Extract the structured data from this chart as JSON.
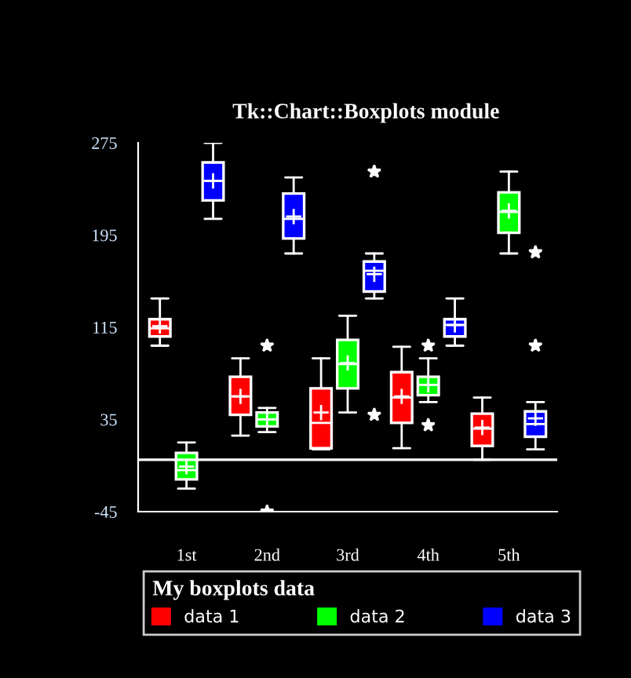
{
  "chart_data": {
    "type": "box",
    "title": "Tk::Chart::Boxplots module",
    "legend_title": "My boxplots data",
    "legend": "bottom",
    "categories": [
      "1st",
      "2nd",
      "3rd",
      "4th",
      "5th"
    ],
    "ylim": [
      -45,
      275
    ],
    "yticks": [
      -45,
      35,
      115,
      195,
      275
    ],
    "grid": false,
    "ref_lines": [
      {
        "axis": "y",
        "value": 0,
        "color": "#ffffff"
      }
    ],
    "series": [
      {
        "name": "data 1",
        "color": "#ff0000",
        "boxes": [
          {
            "low": 99,
            "q1": 107,
            "median": 114,
            "q3": 122,
            "high": 140,
            "mean": 116
          },
          {
            "low": 21,
            "q1": 39,
            "median": 55,
            "q3": 72,
            "high": 88,
            "mean": 55
          },
          {
            "low": 9,
            "q1": 10,
            "median": 32,
            "q3": 62,
            "high": 88,
            "mean": 41
          },
          {
            "low": 10,
            "q1": 32,
            "median": 54,
            "q3": 76,
            "high": 98,
            "mean": 55
          },
          {
            "low": 0,
            "q1": 12,
            "median": 27,
            "q3": 40,
            "high": 54,
            "mean": 28
          }
        ]
      },
      {
        "name": "data 2",
        "color": "#00ff00",
        "boxes": [
          {
            "low": -25,
            "q1": -17,
            "median": -9,
            "q3": 6,
            "high": 15,
            "mean": -6
          },
          {
            "low": 24,
            "q1": 29,
            "median": 35,
            "q3": 41,
            "high": 45,
            "mean": 35,
            "outliers": [
              99,
              -45
            ]
          },
          {
            "low": 41,
            "q1": 62,
            "median": 83,
            "q3": 104,
            "high": 125,
            "mean": 84
          },
          {
            "low": 50,
            "q1": 56,
            "median": 65,
            "q3": 72,
            "high": 88,
            "mean": 65,
            "outliers": [
              99,
              30
            ]
          },
          {
            "low": 179,
            "q1": 197,
            "median": 215,
            "q3": 232,
            "high": 250,
            "mean": 216
          }
        ]
      },
      {
        "name": "data 3",
        "color": "#0000ff",
        "boxes": [
          {
            "low": 209,
            "q1": 225,
            "median": 242,
            "q3": 258,
            "high": 275,
            "mean": 242
          },
          {
            "low": 179,
            "q1": 192,
            "median": 209,
            "q3": 231,
            "high": 245,
            "mean": 211
          },
          {
            "low": 140,
            "q1": 146,
            "median": 164,
            "q3": 172,
            "high": 179,
            "mean": 161,
            "outliers": [
              250,
              39
            ]
          },
          {
            "low": 99,
            "q1": 107,
            "median": 117,
            "q3": 122,
            "high": 140,
            "mean": 117
          },
          {
            "low": 9,
            "q1": 20,
            "median": 31,
            "q3": 42,
            "high": 50,
            "mean": 36,
            "outliers": [
              180,
              99
            ]
          }
        ]
      }
    ]
  }
}
